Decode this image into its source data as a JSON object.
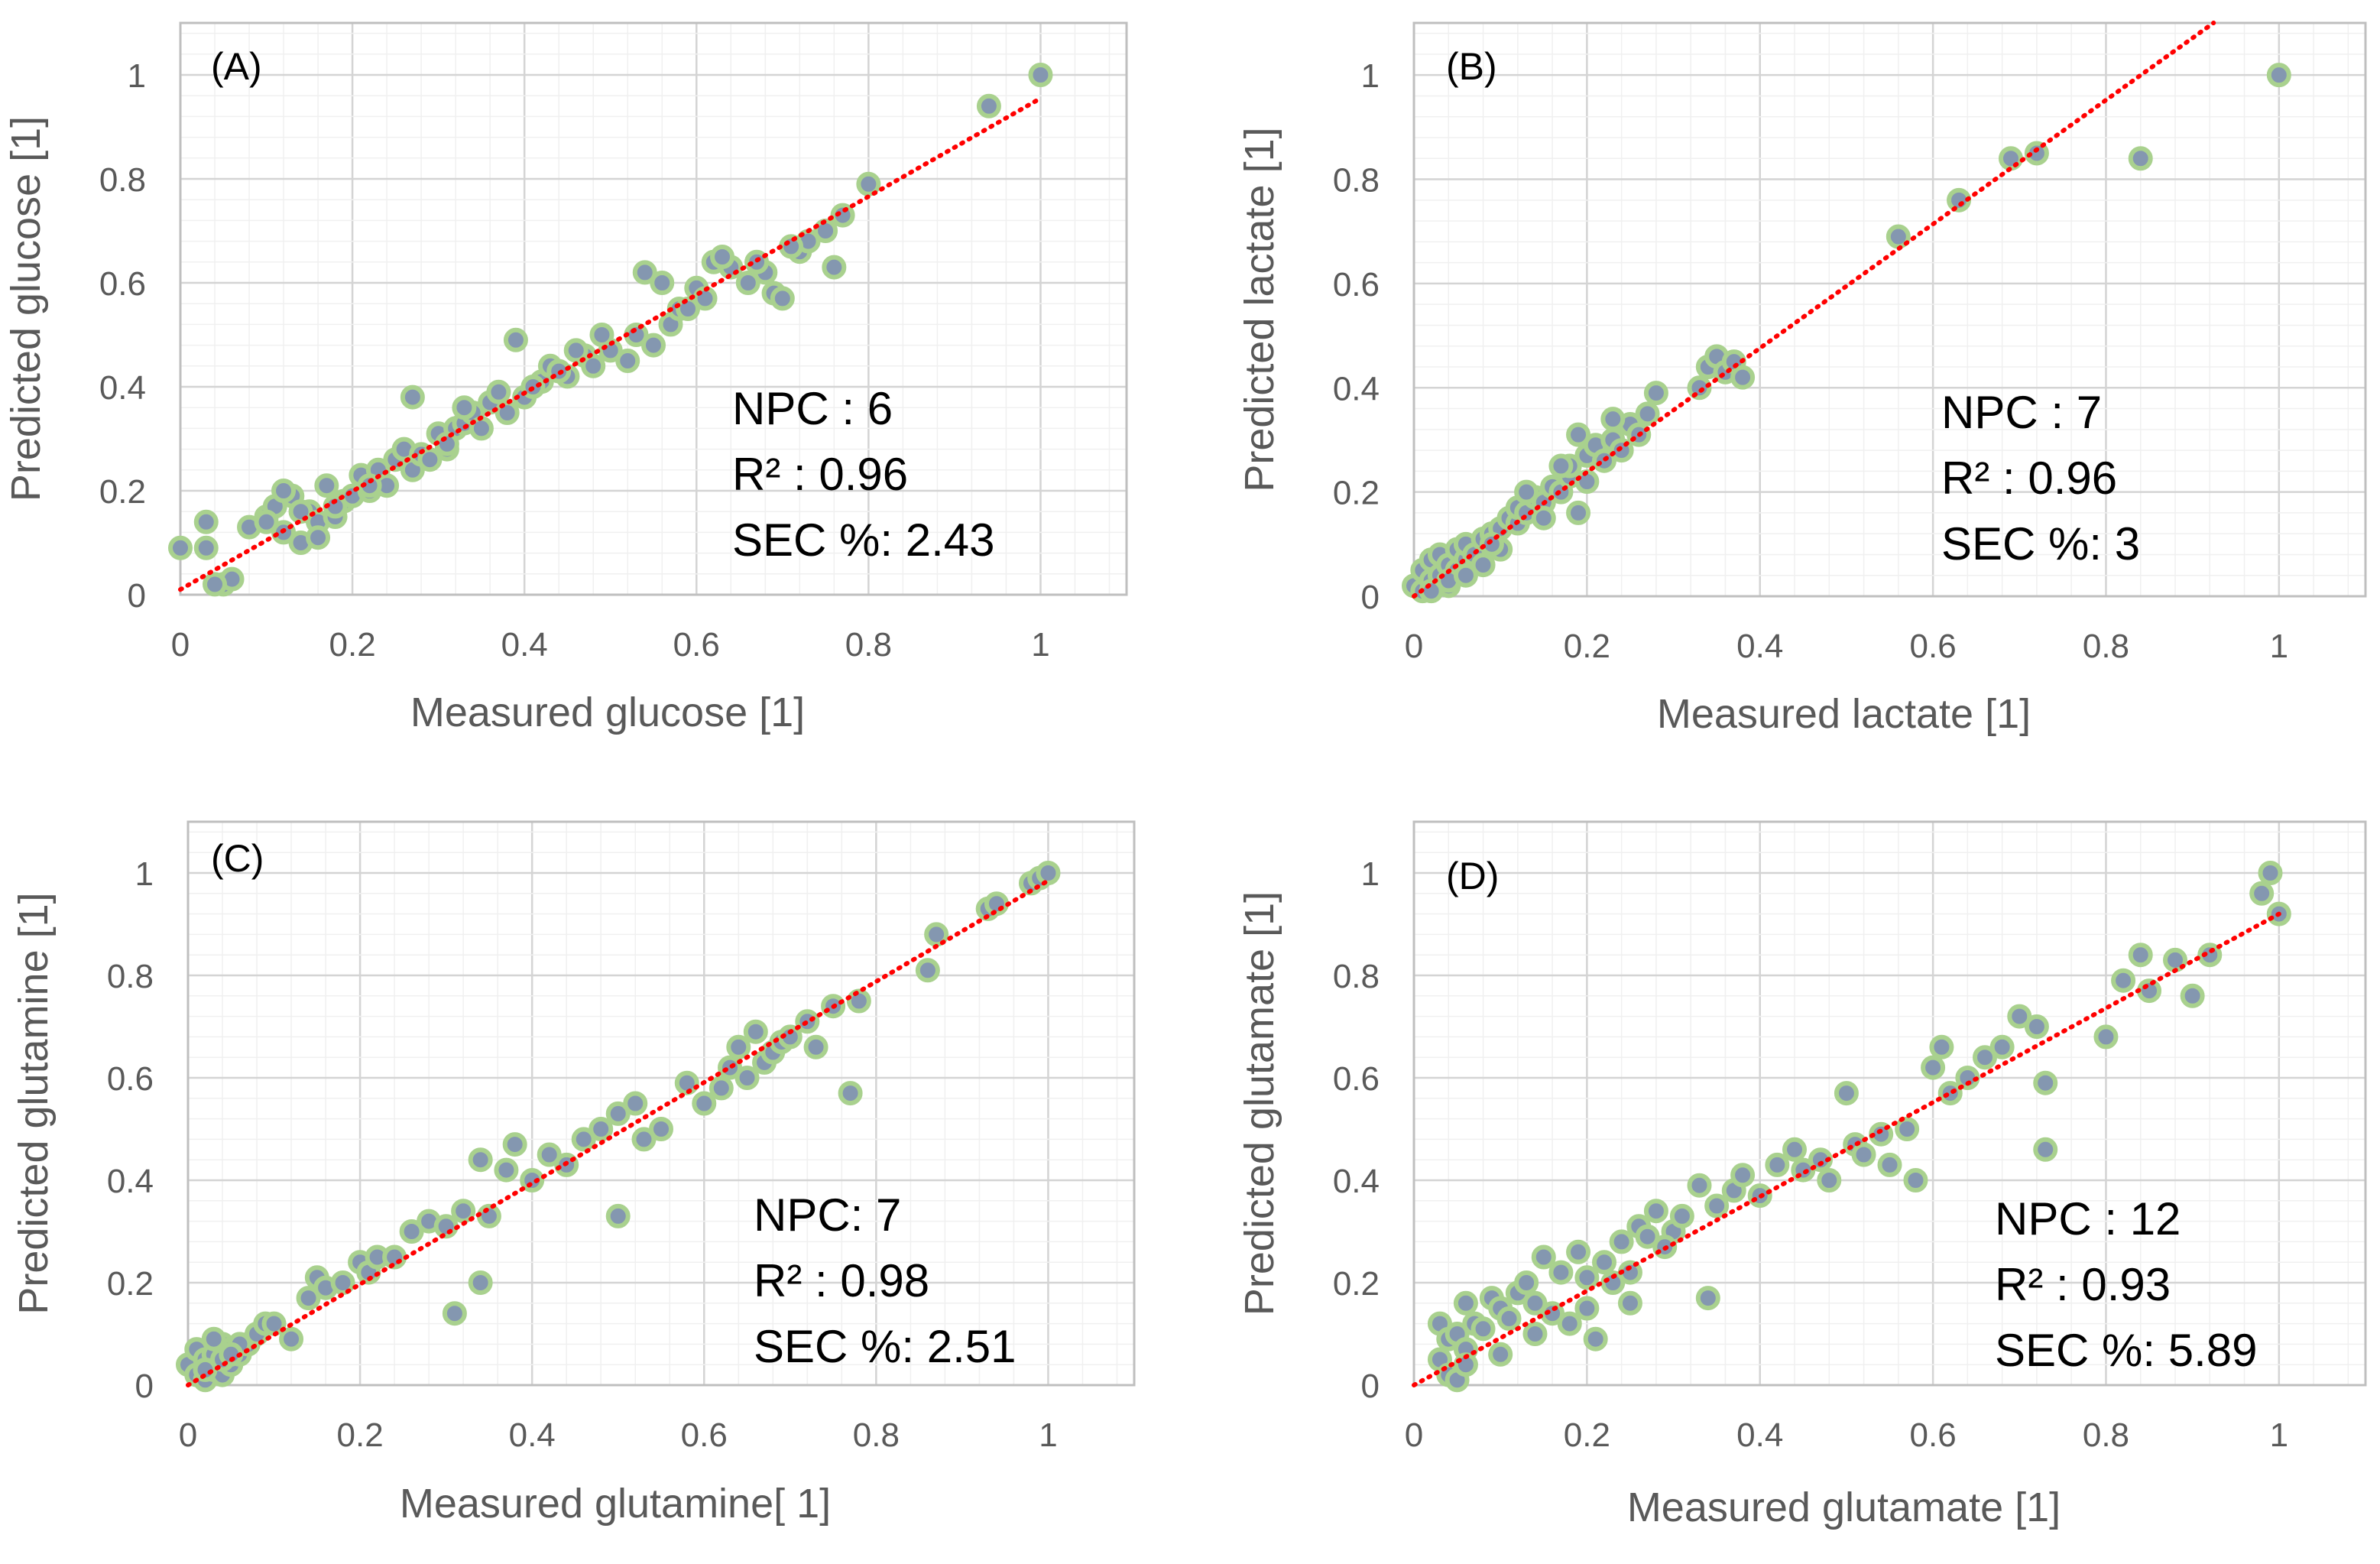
{
  "figure_colors": {
    "point_fill": "#8497b0",
    "point_edge": "#a9d18e",
    "trend": "#ff0000",
    "text": "#000000",
    "axis_text": "#595959"
  },
  "chart_data": [
    {
      "id": "A",
      "type": "scatter",
      "panel_label": "(A)",
      "xlabel": "Measured glucose [1]",
      "ylabel": "Predicted glucose [1]",
      "xlim": [
        0,
        1.1
      ],
      "ylim": [
        0,
        1.1
      ],
      "xticks": [
        "0",
        "0.2",
        "0.4",
        "0.6",
        "0.8",
        "1"
      ],
      "yticks": [
        "0",
        "0.2",
        "0.4",
        "0.6",
        "0.8",
        "1"
      ],
      "stats": {
        "npc": "NPC : 6",
        "r2": "R² : 0.96",
        "sec": "SEC %: 2.43"
      },
      "trendline": {
        "slope": 0.945,
        "intercept": 0.01
      },
      "x": [
        0.0,
        0.03,
        0.03,
        0.05,
        0.06,
        0.04,
        0.08,
        0.1,
        0.11,
        0.12,
        0.13,
        0.14,
        0.12,
        0.15,
        0.16,
        0.17,
        0.18,
        0.19,
        0.2,
        0.21,
        0.22,
        0.23,
        0.24,
        0.25,
        0.26,
        0.27,
        0.28,
        0.29,
        0.3,
        0.31,
        0.32,
        0.33,
        0.34,
        0.35,
        0.36,
        0.38,
        0.39,
        0.4,
        0.42,
        0.43,
        0.45,
        0.47,
        0.48,
        0.5,
        0.52,
        0.53,
        0.54,
        0.55,
        0.56,
        0.57,
        0.58,
        0.6,
        0.61,
        0.62,
        0.64,
        0.66,
        0.68,
        0.69,
        0.7,
        0.72,
        0.73,
        0.75,
        0.76,
        0.77,
        0.8,
        0.94,
        1.0,
        0.1,
        0.14,
        0.16,
        0.18,
        0.22,
        0.27,
        0.31,
        0.33,
        0.37,
        0.41,
        0.44,
        0.46,
        0.49,
        0.59,
        0.63,
        0.67,
        0.71
      ],
      "y": [
        0.09,
        0.09,
        0.14,
        0.02,
        0.03,
        0.02,
        0.13,
        0.15,
        0.17,
        0.12,
        0.19,
        0.1,
        0.2,
        0.16,
        0.14,
        0.21,
        0.15,
        0.18,
        0.19,
        0.23,
        0.2,
        0.24,
        0.21,
        0.26,
        0.28,
        0.24,
        0.27,
        0.26,
        0.31,
        0.28,
        0.32,
        0.33,
        0.35,
        0.32,
        0.37,
        0.35,
        0.49,
        0.38,
        0.41,
        0.44,
        0.42,
        0.46,
        0.44,
        0.47,
        0.45,
        0.5,
        0.62,
        0.48,
        0.6,
        0.52,
        0.55,
        0.59,
        0.57,
        0.64,
        0.63,
        0.6,
        0.62,
        0.58,
        0.57,
        0.66,
        0.68,
        0.7,
        0.63,
        0.73,
        0.79,
        0.94,
        1.0,
        0.14,
        0.16,
        0.11,
        0.17,
        0.21,
        0.38,
        0.29,
        0.36,
        0.39,
        0.4,
        0.43,
        0.47,
        0.5,
        0.55,
        0.65,
        0.64,
        0.67
      ]
    },
    {
      "id": "B",
      "type": "scatter",
      "panel_label": "(B)",
      "xlabel": "Measured lactate [1]",
      "ylabel": "Predicted lactate [1]",
      "xlim": [
        0,
        1.1
      ],
      "ylim": [
        0,
        1.1
      ],
      "xticks": [
        "0",
        "0.2",
        "0.4",
        "0.6",
        "0.8",
        "1"
      ],
      "yticks": [
        "0",
        "0.2",
        "0.4",
        "0.6",
        "0.8",
        "1"
      ],
      "stats": {
        "npc": "NPC : 7",
        "r2": "R² : 0.96",
        "sec": "SEC %: 3"
      },
      "trendline": {
        "slope": 1.19,
        "intercept": 0.0
      },
      "x": [
        0.0,
        0.01,
        0.01,
        0.02,
        0.02,
        0.03,
        0.03,
        0.04,
        0.04,
        0.05,
        0.05,
        0.06,
        0.06,
        0.07,
        0.08,
        0.08,
        0.09,
        0.1,
        0.1,
        0.11,
        0.12,
        0.12,
        0.13,
        0.14,
        0.15,
        0.15,
        0.16,
        0.17,
        0.18,
        0.18,
        0.19,
        0.2,
        0.2,
        0.21,
        0.22,
        0.23,
        0.24,
        0.25,
        0.26,
        0.27,
        0.28,
        0.33,
        0.34,
        0.35,
        0.36,
        0.37,
        0.38,
        0.56,
        0.63,
        0.69,
        0.72,
        0.84,
        1.0,
        0.02,
        0.04,
        0.06,
        0.09,
        0.13,
        0.17,
        0.19,
        0.23
      ],
      "y": [
        0.02,
        0.05,
        0.01,
        0.07,
        0.03,
        0.04,
        0.08,
        0.02,
        0.06,
        0.09,
        0.05,
        0.07,
        0.1,
        0.08,
        0.11,
        0.06,
        0.12,
        0.13,
        0.09,
        0.15,
        0.14,
        0.17,
        0.16,
        0.19,
        0.18,
        0.15,
        0.21,
        0.2,
        0.23,
        0.25,
        0.16,
        0.27,
        0.22,
        0.29,
        0.26,
        0.3,
        0.28,
        0.33,
        0.31,
        0.35,
        0.39,
        0.4,
        0.44,
        0.46,
        0.43,
        0.45,
        0.42,
        0.69,
        0.76,
        0.84,
        0.85,
        0.84,
        1.0,
        0.01,
        0.03,
        0.04,
        0.1,
        0.2,
        0.25,
        0.31,
        0.34
      ]
    },
    {
      "id": "C",
      "type": "scatter",
      "panel_label": "(C)",
      "xlabel": "Measured glutamine[ 1]",
      "ylabel": "Predicted glutamine [1]",
      "xlim": [
        0,
        1.1
      ],
      "ylim": [
        0,
        1.1
      ],
      "xticks": [
        "0",
        "0.2",
        "0.4",
        "0.6",
        "0.8",
        "1"
      ],
      "yticks": [
        "0",
        "0.2",
        "0.4",
        "0.6",
        "0.8",
        "1"
      ],
      "stats": {
        "npc": "NPC: 7",
        "r2": "R² : 0.98",
        "sec": "SEC %: 2.51"
      },
      "trendline": {
        "slope": 0.985,
        "intercept": 0.0
      },
      "x": [
        0.0,
        0.01,
        0.01,
        0.02,
        0.02,
        0.03,
        0.03,
        0.04,
        0.04,
        0.05,
        0.05,
        0.06,
        0.07,
        0.08,
        0.09,
        0.1,
        0.12,
        0.14,
        0.15,
        0.16,
        0.18,
        0.2,
        0.21,
        0.22,
        0.24,
        0.26,
        0.28,
        0.3,
        0.31,
        0.32,
        0.34,
        0.34,
        0.35,
        0.37,
        0.38,
        0.4,
        0.42,
        0.44,
        0.46,
        0.48,
        0.5,
        0.5,
        0.52,
        0.53,
        0.55,
        0.58,
        0.6,
        0.62,
        0.63,
        0.64,
        0.65,
        0.66,
        0.67,
        0.68,
        0.69,
        0.7,
        0.72,
        0.73,
        0.75,
        0.77,
        0.78,
        0.86,
        0.87,
        0.93,
        0.94,
        0.98,
        0.99,
        1.0,
        0.02,
        0.04,
        0.06,
        0.03,
        0.05
      ],
      "y": [
        0.04,
        0.07,
        0.02,
        0.05,
        0.01,
        0.06,
        0.03,
        0.08,
        0.02,
        0.04,
        0.07,
        0.06,
        0.08,
        0.1,
        0.12,
        0.12,
        0.09,
        0.17,
        0.21,
        0.19,
        0.2,
        0.24,
        0.22,
        0.25,
        0.25,
        0.3,
        0.32,
        0.31,
        0.14,
        0.34,
        0.44,
        0.2,
        0.33,
        0.42,
        0.47,
        0.4,
        0.45,
        0.43,
        0.48,
        0.5,
        0.33,
        0.53,
        0.55,
        0.48,
        0.5,
        0.59,
        0.55,
        0.58,
        0.62,
        0.66,
        0.6,
        0.69,
        0.63,
        0.65,
        0.67,
        0.68,
        0.71,
        0.66,
        0.74,
        0.57,
        0.75,
        0.81,
        0.88,
        0.93,
        0.94,
        0.98,
        0.99,
        1.0,
        0.03,
        0.05,
        0.08,
        0.09,
        0.06
      ]
    },
    {
      "id": "D",
      "type": "scatter",
      "panel_label": "(D)",
      "xlabel": "Measured glutamate [1]",
      "ylabel": "Predicted glutamate [1]",
      "xlim": [
        0,
        1.1
      ],
      "ylim": [
        0,
        1.1
      ],
      "xticks": [
        "0",
        "0.2",
        "0.4",
        "0.6",
        "0.8",
        "1"
      ],
      "yticks": [
        "0",
        "0.2",
        "0.4",
        "0.6",
        "0.8",
        "1"
      ],
      "stats": {
        "npc": "NPC : 12",
        "r2": "R² : 0.93",
        "sec": "SEC %: 5.89"
      },
      "trendline": {
        "slope": 0.92,
        "intercept": 0.0
      },
      "x": [
        0.03,
        0.03,
        0.04,
        0.04,
        0.05,
        0.05,
        0.06,
        0.06,
        0.07,
        0.08,
        0.09,
        0.1,
        0.11,
        0.12,
        0.13,
        0.14,
        0.15,
        0.16,
        0.17,
        0.18,
        0.19,
        0.2,
        0.21,
        0.22,
        0.23,
        0.24,
        0.25,
        0.26,
        0.27,
        0.28,
        0.3,
        0.31,
        0.33,
        0.34,
        0.35,
        0.37,
        0.38,
        0.4,
        0.42,
        0.44,
        0.45,
        0.47,
        0.48,
        0.5,
        0.51,
        0.52,
        0.54,
        0.55,
        0.57,
        0.58,
        0.6,
        0.61,
        0.62,
        0.64,
        0.66,
        0.68,
        0.7,
        0.72,
        0.73,
        0.73,
        0.8,
        0.82,
        0.84,
        0.85,
        0.88,
        0.9,
        0.92,
        0.98,
        0.99,
        1.0,
        0.06,
        0.1,
        0.14,
        0.2,
        0.25,
        0.29
      ],
      "y": [
        0.12,
        0.05,
        0.09,
        0.02,
        0.1,
        0.01,
        0.16,
        0.07,
        0.12,
        0.11,
        0.17,
        0.15,
        0.13,
        0.18,
        0.2,
        0.16,
        0.25,
        0.14,
        0.22,
        0.12,
        0.26,
        0.21,
        0.09,
        0.24,
        0.2,
        0.28,
        0.16,
        0.31,
        0.29,
        0.34,
        0.3,
        0.33,
        0.39,
        0.17,
        0.35,
        0.38,
        0.41,
        0.37,
        0.43,
        0.46,
        0.42,
        0.44,
        0.4,
        0.57,
        0.47,
        0.45,
        0.49,
        0.43,
        0.5,
        0.4,
        0.62,
        0.66,
        0.57,
        0.6,
        0.64,
        0.66,
        0.72,
        0.7,
        0.59,
        0.46,
        0.68,
        0.79,
        0.84,
        0.77,
        0.83,
        0.76,
        0.84,
        0.96,
        1.0,
        0.92,
        0.04,
        0.06,
        0.1,
        0.15,
        0.22,
        0.27
      ]
    }
  ]
}
